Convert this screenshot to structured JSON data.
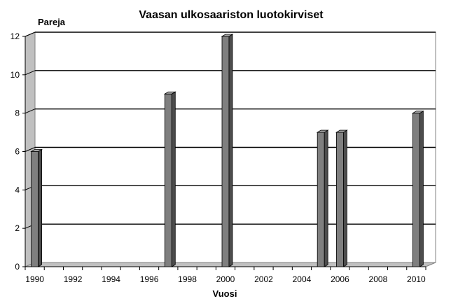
{
  "chart_data": {
    "type": "bar",
    "title": "Vaasan ulkosaariston luotokirviset",
    "xlabel": "Vuosi",
    "ylabel": "Pareja",
    "x": [
      1990,
      1991,
      1992,
      1993,
      1994,
      1995,
      1996,
      1997,
      1998,
      1999,
      2000,
      2001,
      2002,
      2003,
      2004,
      2005,
      2006,
      2007,
      2008,
      2009,
      2010
    ],
    "values": [
      6,
      0,
      0,
      0,
      0,
      0,
      0,
      9,
      0,
      0,
      12,
      0,
      0,
      0,
      0,
      7,
      7,
      0,
      0,
      0,
      8
    ],
    "x_tick_labels": [
      "1990",
      "1992",
      "1994",
      "1996",
      "1998",
      "2000",
      "2002",
      "2004",
      "2006",
      "2008",
      "2010"
    ],
    "y_tick_labels": [
      "0",
      "2",
      "4",
      "6",
      "8",
      "10",
      "12"
    ],
    "ylim": [
      0,
      12
    ],
    "grid": true,
    "colors": {
      "bar_front": "#7f7f7f",
      "bar_side": "#4d4d4d",
      "bar_top": "#a6a6a6",
      "plot_fill": "#ffffff",
      "wall_fill": "#c0c0c0"
    }
  }
}
